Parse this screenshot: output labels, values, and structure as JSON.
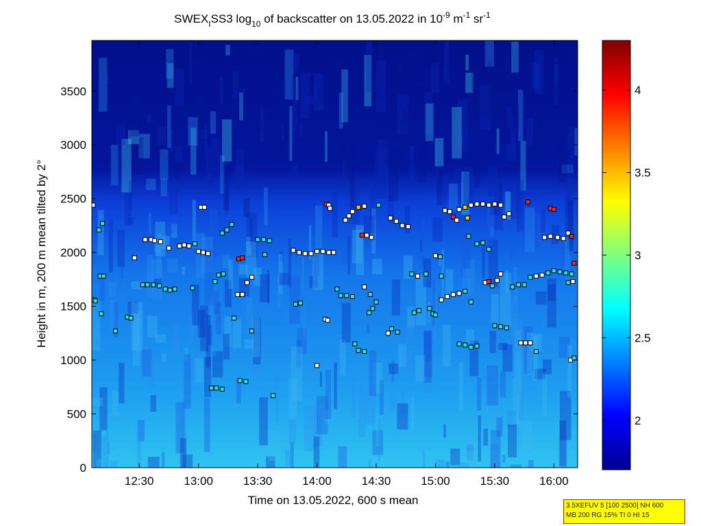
{
  "chart_data": {
    "type": "heatmap",
    "title": {
      "part1": "SWEX",
      "sub1": "I",
      "part2": "SS3 log",
      "sub2": "10",
      "part3": " of backscatter on 13.05.2022 in 10",
      "sup1": "-9",
      "part4": " m",
      "sup2": "-1",
      "part5": " sr",
      "sup3": "-1"
    },
    "xlabel": "Time on 13.05.2022, 600 s mean",
    "ylabel": "Height in m, 200 m mean tilted by 2°",
    "xlim_hours": [
      12.1,
      16.2
    ],
    "ylim": [
      0,
      3970
    ],
    "xticks": [
      {
        "v": 12.5,
        "label": "12:30"
      },
      {
        "v": 13.0,
        "label": "13:00"
      },
      {
        "v": 13.5,
        "label": "13:30"
      },
      {
        "v": 14.0,
        "label": "14:00"
      },
      {
        "v": 14.5,
        "label": "14:30"
      },
      {
        "v": 15.0,
        "label": "15:00"
      },
      {
        "v": 15.5,
        "label": "15:30"
      },
      {
        "v": 16.0,
        "label": "16:00"
      }
    ],
    "yticks": [
      0,
      500,
      1000,
      1500,
      2000,
      2500,
      3000,
      3500
    ],
    "colorbar": {
      "colormap": "jet",
      "range": [
        1.7,
        4.3
      ],
      "ticks": [
        2,
        2.5,
        3,
        3.5,
        4
      ]
    },
    "markers": [
      {
        "t": 12.11,
        "h": 2440,
        "c": "#ffffff"
      },
      {
        "t": 12.12,
        "h": 1560,
        "c": "#33dddd"
      },
      {
        "t": 12.13,
        "h": 1550,
        "c": "#33dddd"
      },
      {
        "t": 12.16,
        "h": 2210,
        "c": "#33dddd"
      },
      {
        "t": 12.19,
        "h": 2270,
        "c": "#33dddd"
      },
      {
        "t": 12.17,
        "h": 1780,
        "c": "#33dddd"
      },
      {
        "t": 12.2,
        "h": 1780,
        "c": "#33dddd"
      },
      {
        "t": 12.18,
        "h": 1430,
        "c": "#33dddd"
      },
      {
        "t": 12.3,
        "h": 1270,
        "c": "#33dddd"
      },
      {
        "t": 12.4,
        "h": 1400,
        "c": "#33dddd"
      },
      {
        "t": 12.43,
        "h": 1390,
        "c": "#33dddd"
      },
      {
        "t": 12.46,
        "h": 1950,
        "c": "#ffffff"
      },
      {
        "t": 12.55,
        "h": 2120,
        "c": "#ffffff"
      },
      {
        "t": 12.6,
        "h": 2120,
        "c": "#ffffff"
      },
      {
        "t": 12.63,
        "h": 2110,
        "c": "#ffffff"
      },
      {
        "t": 12.68,
        "h": 2100,
        "c": "#ffffff"
      },
      {
        "t": 12.75,
        "h": 2040,
        "c": "#ffffff"
      },
      {
        "t": 12.53,
        "h": 1700,
        "c": "#33dddd"
      },
      {
        "t": 12.57,
        "h": 1700,
        "c": "#33dddd"
      },
      {
        "t": 12.62,
        "h": 1700,
        "c": "#33dddd"
      },
      {
        "t": 12.67,
        "h": 1690,
        "c": "#33dddd"
      },
      {
        "t": 12.72,
        "h": 1660,
        "c": "#33dddd"
      },
      {
        "t": 12.76,
        "h": 1650,
        "c": "#33dddd"
      },
      {
        "t": 12.8,
        "h": 1660,
        "c": "#33dddd"
      },
      {
        "t": 12.84,
        "h": 2060,
        "c": "#ffffff"
      },
      {
        "t": 12.88,
        "h": 2070,
        "c": "#ffffff"
      },
      {
        "t": 12.92,
        "h": 2060,
        "c": "#ffffff"
      },
      {
        "t": 12.97,
        "h": 2080,
        "c": "#33dddd"
      },
      {
        "t": 13.0,
        "h": 2010,
        "c": "#ffffff"
      },
      {
        "t": 13.04,
        "h": 2000,
        "c": "#ffffff"
      },
      {
        "t": 13.08,
        "h": 1990,
        "c": "#ffffff"
      },
      {
        "t": 12.95,
        "h": 1670,
        "c": "#33dddd"
      },
      {
        "t": 13.02,
        "h": 2420,
        "c": "#ffffff"
      },
      {
        "t": 13.05,
        "h": 2420,
        "c": "#ffffff"
      },
      {
        "t": 13.14,
        "h": 1730,
        "c": "#33dddd"
      },
      {
        "t": 13.17,
        "h": 1790,
        "c": "#33dddd"
      },
      {
        "t": 13.21,
        "h": 1800,
        "c": "#33dddd"
      },
      {
        "t": 13.2,
        "h": 2180,
        "c": "#33dddd"
      },
      {
        "t": 13.24,
        "h": 2210,
        "c": "#33dddd"
      },
      {
        "t": 13.28,
        "h": 2260,
        "c": "#33dddd"
      },
      {
        "t": 13.11,
        "h": 740,
        "c": "#33dddd"
      },
      {
        "t": 13.15,
        "h": 740,
        "c": "#33dddd"
      },
      {
        "t": 13.2,
        "h": 730,
        "c": "#33dddd"
      },
      {
        "t": 13.3,
        "h": 1390,
        "c": "#33dddd"
      },
      {
        "t": 13.33,
        "h": 1610,
        "c": "#ffffff"
      },
      {
        "t": 13.37,
        "h": 1610,
        "c": "#ffffff"
      },
      {
        "t": 13.41,
        "h": 1720,
        "c": "#ffffff"
      },
      {
        "t": 13.45,
        "h": 1770,
        "c": "#ffffff"
      },
      {
        "t": 13.34,
        "h": 1940,
        "c": "#ff2020"
      },
      {
        "t": 13.37,
        "h": 1950,
        "c": "#ff2020"
      },
      {
        "t": 13.35,
        "h": 810,
        "c": "#33dddd"
      },
      {
        "t": 13.4,
        "h": 800,
        "c": "#33dddd"
      },
      {
        "t": 13.45,
        "h": 1270,
        "c": "#33dddd"
      },
      {
        "t": 13.5,
        "h": 2120,
        "c": "#33dddd"
      },
      {
        "t": 13.55,
        "h": 2120,
        "c": "#33dddd"
      },
      {
        "t": 13.6,
        "h": 2110,
        "c": "#33dddd"
      },
      {
        "t": 13.56,
        "h": 1980,
        "c": "#33dddd"
      },
      {
        "t": 13.63,
        "h": 670,
        "c": "#33dddd"
      },
      {
        "t": 13.8,
        "h": 2020,
        "c": "#ffffff"
      },
      {
        "t": 13.85,
        "h": 2000,
        "c": "#ffffff"
      },
      {
        "t": 13.9,
        "h": 1990,
        "c": "#ffffff"
      },
      {
        "t": 13.95,
        "h": 1990,
        "c": "#ffffff"
      },
      {
        "t": 14.0,
        "h": 2010,
        "c": "#ffffff"
      },
      {
        "t": 14.05,
        "h": 2010,
        "c": "#ffffff"
      },
      {
        "t": 14.1,
        "h": 2000,
        "c": "#ffffff"
      },
      {
        "t": 14.14,
        "h": 2000,
        "c": "#ffffff"
      },
      {
        "t": 13.82,
        "h": 1520,
        "c": "#33dddd"
      },
      {
        "t": 13.86,
        "h": 1530,
        "c": "#33dddd"
      },
      {
        "t": 14.0,
        "h": 950,
        "c": "#ffffff"
      },
      {
        "t": 14.07,
        "h": 1380,
        "c": "#ffffff"
      },
      {
        "t": 14.09,
        "h": 1370,
        "c": "#ffffff"
      },
      {
        "t": 14.08,
        "h": 2450,
        "c": "#ff2020"
      },
      {
        "t": 14.1,
        "h": 2440,
        "c": "#ffffff"
      },
      {
        "t": 14.11,
        "h": 2410,
        "c": "#ffffff"
      },
      {
        "t": 14.17,
        "h": 1660,
        "c": "#33dddd"
      },
      {
        "t": 14.2,
        "h": 1600,
        "c": "#33dddd"
      },
      {
        "t": 14.25,
        "h": 1600,
        "c": "#33dddd"
      },
      {
        "t": 14.3,
        "h": 1590,
        "c": "#33dddd"
      },
      {
        "t": 14.24,
        "h": 2300,
        "c": "#ffffff"
      },
      {
        "t": 14.27,
        "h": 2340,
        "c": "#ffffff"
      },
      {
        "t": 14.3,
        "h": 2380,
        "c": "#ffffff"
      },
      {
        "t": 14.35,
        "h": 2420,
        "c": "#ffcc00"
      },
      {
        "t": 14.4,
        "h": 2430,
        "c": "#ffffff"
      },
      {
        "t": 14.38,
        "h": 2160,
        "c": "#ff2020"
      },
      {
        "t": 14.42,
        "h": 2160,
        "c": "#ffffff"
      },
      {
        "t": 14.46,
        "h": 2140,
        "c": "#ffffff"
      },
      {
        "t": 14.32,
        "h": 1150,
        "c": "#33dddd"
      },
      {
        "t": 14.35,
        "h": 1090,
        "c": "#33dddd"
      },
      {
        "t": 14.4,
        "h": 1080,
        "c": "#33dddd"
      },
      {
        "t": 14.44,
        "h": 1440,
        "c": "#33dddd"
      },
      {
        "t": 14.47,
        "h": 1480,
        "c": "#33dddd"
      },
      {
        "t": 14.4,
        "h": 1680,
        "c": "#ffffff"
      },
      {
        "t": 14.45,
        "h": 1610,
        "c": "#33dddd"
      },
      {
        "t": 14.5,
        "h": 1540,
        "c": "#33dddd"
      },
      {
        "t": 14.52,
        "h": 2440,
        "c": "#33dddd"
      },
      {
        "t": 14.6,
        "h": 1250,
        "c": "#ffffff"
      },
      {
        "t": 14.63,
        "h": 1290,
        "c": "#33dddd"
      },
      {
        "t": 14.68,
        "h": 1260,
        "c": "#33dddd"
      },
      {
        "t": 14.62,
        "h": 2320,
        "c": "#ffffff"
      },
      {
        "t": 14.67,
        "h": 2290,
        "c": "#ffffff"
      },
      {
        "t": 14.72,
        "h": 2250,
        "c": "#ffffff"
      },
      {
        "t": 14.77,
        "h": 2240,
        "c": "#ffffff"
      },
      {
        "t": 14.82,
        "h": 1440,
        "c": "#33dddd"
      },
      {
        "t": 14.86,
        "h": 1460,
        "c": "#33dddd"
      },
      {
        "t": 14.8,
        "h": 1800,
        "c": "#33dddd"
      },
      {
        "t": 14.85,
        "h": 1780,
        "c": "#ffffff"
      },
      {
        "t": 14.92,
        "h": 1800,
        "c": "#33dddd"
      },
      {
        "t": 14.95,
        "h": 1480,
        "c": "#33dddd"
      },
      {
        "t": 14.98,
        "h": 1430,
        "c": "#33dddd"
      },
      {
        "t": 15.0,
        "h": 1420,
        "c": "#33dddd"
      },
      {
        "t": 15.05,
        "h": 1560,
        "c": "#ffffff"
      },
      {
        "t": 15.1,
        "h": 1590,
        "c": "#ffffff"
      },
      {
        "t": 15.15,
        "h": 1610,
        "c": "#ffffff"
      },
      {
        "t": 15.2,
        "h": 1620,
        "c": "#ffffff"
      },
      {
        "t": 15.25,
        "h": 1640,
        "c": "#33dddd"
      },
      {
        "t": 15.3,
        "h": 1540,
        "c": "#33dddd"
      },
      {
        "t": 15.05,
        "h": 1780,
        "c": "#33dddd"
      },
      {
        "t": 15.0,
        "h": 1970,
        "c": "#ffffff"
      },
      {
        "t": 15.04,
        "h": 1960,
        "c": "#33dddd"
      },
      {
        "t": 15.08,
        "h": 2390,
        "c": "#ffffff"
      },
      {
        "t": 15.12,
        "h": 2380,
        "c": "#ffffff"
      },
      {
        "t": 15.15,
        "h": 2330,
        "c": "#ff2020"
      },
      {
        "t": 15.18,
        "h": 2300,
        "c": "#ffffff"
      },
      {
        "t": 15.2,
        "h": 2400,
        "c": "#ffffff"
      },
      {
        "t": 15.25,
        "h": 2420,
        "c": "#ffcc00"
      },
      {
        "t": 15.27,
        "h": 2320,
        "c": "#ffcc00"
      },
      {
        "t": 15.3,
        "h": 2440,
        "c": "#ffffff"
      },
      {
        "t": 15.35,
        "h": 2450,
        "c": "#ffffff"
      },
      {
        "t": 15.4,
        "h": 2450,
        "c": "#ffffff"
      },
      {
        "t": 15.45,
        "h": 2440,
        "c": "#ffffff"
      },
      {
        "t": 15.5,
        "h": 2450,
        "c": "#ffffff"
      },
      {
        "t": 15.55,
        "h": 2440,
        "c": "#ffffff"
      },
      {
        "t": 15.28,
        "h": 2150,
        "c": "#33dddd"
      },
      {
        "t": 15.35,
        "h": 2080,
        "c": "#33dddd"
      },
      {
        "t": 15.4,
        "h": 2090,
        "c": "#33dddd"
      },
      {
        "t": 15.45,
        "h": 2030,
        "c": "#33dddd"
      },
      {
        "t": 15.2,
        "h": 1150,
        "c": "#33dddd"
      },
      {
        "t": 15.25,
        "h": 1140,
        "c": "#33dddd"
      },
      {
        "t": 15.3,
        "h": 1120,
        "c": "#33dddd"
      },
      {
        "t": 15.35,
        "h": 1130,
        "c": "#33dddd"
      },
      {
        "t": 15.42,
        "h": 1720,
        "c": "#ffffff"
      },
      {
        "t": 15.45,
        "h": 1730,
        "c": "#ff2020"
      },
      {
        "t": 15.48,
        "h": 1690,
        "c": "#33dddd"
      },
      {
        "t": 15.52,
        "h": 1740,
        "c": "#ffffff"
      },
      {
        "t": 15.55,
        "h": 1800,
        "c": "#ffffff"
      },
      {
        "t": 15.5,
        "h": 1320,
        "c": "#33dddd"
      },
      {
        "t": 15.55,
        "h": 1310,
        "c": "#33dddd"
      },
      {
        "t": 15.6,
        "h": 1300,
        "c": "#33dddd"
      },
      {
        "t": 15.58,
        "h": 2330,
        "c": "#ffffff"
      },
      {
        "t": 15.62,
        "h": 2360,
        "c": "#ffffff"
      },
      {
        "t": 15.65,
        "h": 1680,
        "c": "#33dddd"
      },
      {
        "t": 15.7,
        "h": 1700,
        "c": "#33dddd"
      },
      {
        "t": 15.75,
        "h": 1700,
        "c": "#33dddd"
      },
      {
        "t": 15.8,
        "h": 1770,
        "c": "#33dddd"
      },
      {
        "t": 15.72,
        "h": 1160,
        "c": "#ffffff"
      },
      {
        "t": 15.76,
        "h": 1160,
        "c": "#ffffff"
      },
      {
        "t": 15.8,
        "h": 1160,
        "c": "#ffffff"
      },
      {
        "t": 15.85,
        "h": 1080,
        "c": "#33dddd"
      },
      {
        "t": 15.78,
        "h": 2470,
        "c": "#ff2020"
      },
      {
        "t": 15.85,
        "h": 1780,
        "c": "#ffffff"
      },
      {
        "t": 15.9,
        "h": 1790,
        "c": "#ffffff"
      },
      {
        "t": 15.95,
        "h": 1810,
        "c": "#33dddd"
      },
      {
        "t": 16.0,
        "h": 1830,
        "c": "#33dddd"
      },
      {
        "t": 16.05,
        "h": 1820,
        "c": "#33dddd"
      },
      {
        "t": 16.1,
        "h": 1810,
        "c": "#33dddd"
      },
      {
        "t": 16.15,
        "h": 1800,
        "c": "#33dddd"
      },
      {
        "t": 15.97,
        "h": 2410,
        "c": "#ff2020"
      },
      {
        "t": 16.0,
        "h": 2400,
        "c": "#ff2020"
      },
      {
        "t": 15.92,
        "h": 2140,
        "c": "#ffffff"
      },
      {
        "t": 15.97,
        "h": 2150,
        "c": "#ffffff"
      },
      {
        "t": 16.03,
        "h": 2140,
        "c": "#ffffff"
      },
      {
        "t": 16.08,
        "h": 2130,
        "c": "#ffffff"
      },
      {
        "t": 16.12,
        "h": 2180,
        "c": "#ffffff"
      },
      {
        "t": 16.15,
        "h": 2150,
        "c": "#ff2020"
      },
      {
        "t": 16.17,
        "h": 1900,
        "c": "#ff2020"
      },
      {
        "t": 16.16,
        "h": 1730,
        "c": "#ffffff"
      },
      {
        "t": 16.14,
        "h": 1000,
        "c": "#ffffff"
      },
      {
        "t": 16.17,
        "h": 1020,
        "c": "#33dddd"
      },
      {
        "t": 16.12,
        "h": 1720,
        "c": "#33dddd"
      }
    ]
  },
  "info_box": {
    "line1": "3.5XEFUV 5 [100 2500] NH 600",
    "line2": "MB 200 RG 15% TI 0 HI 15"
  }
}
